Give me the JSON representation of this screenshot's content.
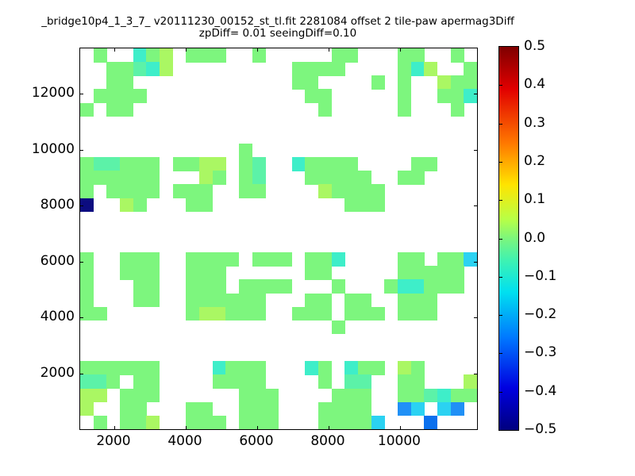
{
  "title": "_bridge10p4_1_3_7_ v20111230_00152_st_tl.fit 2281084 offset 2 tile-paw apermag3Diff",
  "subtitle": "zpDiff= 0.01 seeingDiff=0.10",
  "axes": {
    "x_ticks": [
      2000,
      4000,
      6000,
      8000,
      10000
    ],
    "y_ticks": [
      2000,
      4000,
      6000,
      8000,
      10000,
      12000
    ],
    "x_range": [
      1045,
      12156
    ],
    "y_range": [
      14,
      13631
    ]
  },
  "colorbar": {
    "colormap": "jet",
    "tick_labels": [
      "0.5",
      "0.4",
      "0.3",
      "0.2",
      "0.1",
      "0.0",
      "−0.1",
      "−0.2",
      "−0.3",
      "−0.4",
      "−0.5"
    ],
    "vmin": -0.5,
    "vmax": 0.5,
    "gradient_stops": [
      [
        "#7f0000",
        "0%"
      ],
      [
        "#e10000",
        "11%"
      ],
      [
        "#ff7700",
        "25%"
      ],
      [
        "#ffe400",
        "36%"
      ],
      [
        "#b8ff46",
        "45%"
      ],
      [
        "#7cf67c",
        "50%"
      ],
      [
        "#3cf2b4",
        "56%"
      ],
      [
        "#00e0f0",
        "64%"
      ],
      [
        "#0077ff",
        "76%"
      ],
      [
        "#0000e0",
        "89%"
      ],
      [
        "#00007f",
        "100%"
      ]
    ]
  },
  "chart_data": {
    "type": "heatmap",
    "title": "_bridge10p4_1_3_7_ v20111230_00152_st_tl.fit 2281084 offset 2 tile-paw apermag3Diff",
    "subtitle": "zpDiff= 0.01 seeingDiff=0.10",
    "xlabel": "",
    "ylabel": "",
    "grid_cols": 30,
    "grid_rows": 28,
    "note": "rows listed top (y~13600) to bottom (y~0); '.' = empty (white) bin",
    "value_legend": {
      "g": 0.0,
      "G": -0.04,
      "t": -0.07,
      "y": 0.05,
      "c": -0.13,
      "b": -0.25,
      "B": -0.32,
      "N": -0.48
    },
    "color_legend": {
      "g": "#7df67e",
      "G": "#5cf2a8",
      "t": "#3eeec9",
      "y": "#aaf763",
      "c": "#2bd2f2",
      "b": "#2090f6",
      "B": "#0b70ee",
      "N": "#0c0c80"
    },
    "grid": [
      ".g..tgy.ggg..g.....gg...gg..g.",
      "..ggGty.........gggg....gty..g",
      "..gg............gg....g.g..ygg",
      ".gggg............gg.....g..ggt",
      "g.gg..............g.....g...g.",
      "..............................",
      "..............................",
      "............g.................",
      "gGGggg.ggyy.gG..tgggg....gg...",
      "gggggg...yg.gG...ggggg..gg....",
      "g.gggg.ggg..gg....ygggg.......",
      "N..yg...gg..........ggg.......",
      "..............................",
      "..............................",
      "..............................",
      "g..ggg..gggg.ggg.ggt....gg.ggc",
      "g..ggg..ggg......gg.....ggggg.",
      "g...gg..ggg.gggg...g...gttggg.",
      "g...gg..gggggg...gg.gg..ggg...",
      "gg......gyyggg..ggg.ggg.ggg...",
      "...................g..........",
      "..............................",
      "..............................",
      "gggggg....tggg...tg.tgg.yg....",
      "GGg.gg....gggg....g.GG..gg...y",
      "yy.ggg......ggg....ggg..ggGtgg",
      "y..gg...gg..ggg...gggg..bc.cb.",
      ".g.ggy..ggg.ggg...ggggc...B..."
    ]
  }
}
